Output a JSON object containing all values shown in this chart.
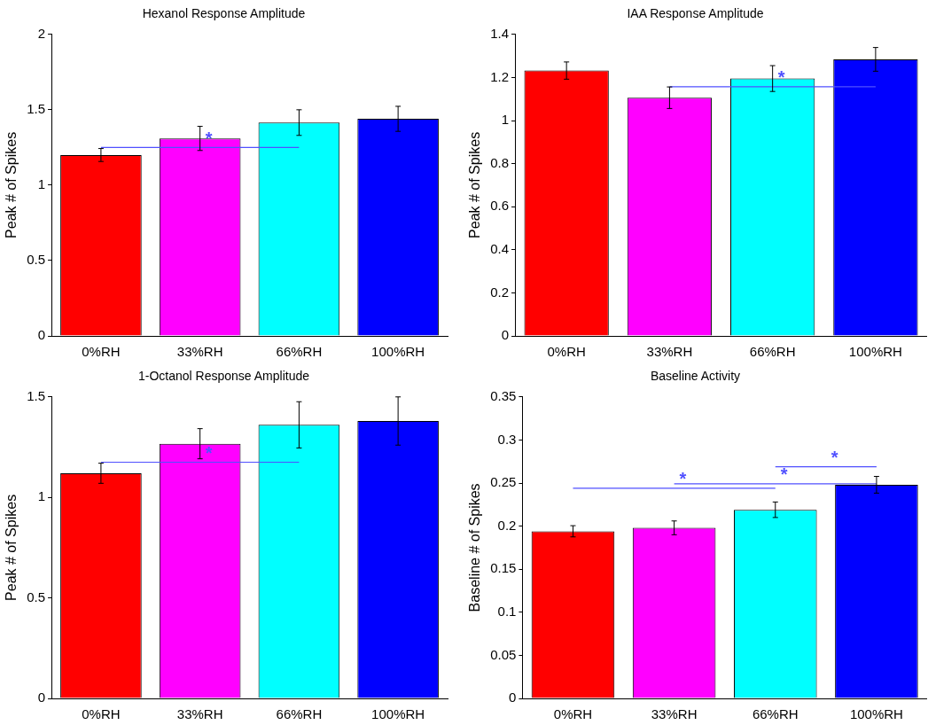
{
  "chart_data": [
    {
      "type": "bar",
      "title": "Hexanol Response Amplitude",
      "ylabel": "Peak # of Spikes",
      "categories": [
        "0%RH",
        "33%RH",
        "66%RH",
        "100%RH"
      ],
      "ylim": [
        0,
        2
      ],
      "yticks": [
        0,
        0.5,
        1,
        1.5,
        2
      ],
      "annotations": [
        "*"
      ],
      "series": [
        {
          "values": [
            1.2,
            1.31,
            1.415,
            1.44
          ],
          "colors": [
            "#ff0000",
            "#ff00ff",
            "#00ffff",
            "#0000ff"
          ],
          "errors": [
            0.043,
            0.08,
            0.085,
            0.083
          ]
        },
        {
          "type": "line",
          "x": [
            "0%RH",
            "66%RH"
          ],
          "values": [
            1.25,
            1.25
          ],
          "color": "#5050ff"
        }
      ]
    },
    {
      "type": "bar",
      "title": "IAA Response Amplitude",
      "ylabel": "Peak # of Spikes",
      "categories": [
        "0%RH",
        "33%RH",
        "66%RH",
        "100%RH"
      ],
      "ylim": [
        0,
        1.4
      ],
      "yticks": [
        0,
        0.2,
        0.4,
        0.6,
        0.8,
        1,
        1.2,
        1.4
      ],
      "annotations": [
        "*"
      ],
      "series": [
        {
          "values": [
            1.232,
            1.106,
            1.195,
            1.284
          ],
          "colors": [
            "#ff0000",
            "#ff00ff",
            "#00ffff",
            "#0000ff"
          ],
          "errors": [
            0.04,
            0.05,
            0.06,
            0.055
          ]
        },
        {
          "type": "line",
          "x": [
            "33%RH",
            "100%RH"
          ],
          "values": [
            1.157,
            1.157
          ],
          "color": "#5050ff"
        }
      ]
    },
    {
      "type": "bar",
      "title": "1-Octanol Response Amplitude",
      "ylabel": "Peak # of Spikes",
      "categories": [
        "0%RH",
        "33%RH",
        "66%RH",
        "100%RH"
      ],
      "ylim": [
        0,
        1.5
      ],
      "yticks": [
        0,
        0.5,
        1,
        1.5
      ],
      "annotations": [
        "*"
      ],
      "series": [
        {
          "values": [
            1.12,
            1.267,
            1.361,
            1.38
          ],
          "colors": [
            "#ff0000",
            "#ff00ff",
            "#00ffff",
            "#0000ff"
          ],
          "errors": [
            0.05,
            0.075,
            0.115,
            0.12
          ]
        },
        {
          "type": "line",
          "x": [
            "0%RH",
            "66%RH"
          ],
          "values": [
            1.175,
            1.175
          ],
          "color": "#5050ff"
        }
      ]
    },
    {
      "type": "bar",
      "title": "Baseline Activity",
      "ylabel": "Baseline # of Spikes",
      "categories": [
        "0%RH",
        "33%RH",
        "66%RH",
        "100%RH"
      ],
      "ylim": [
        0,
        0.35
      ],
      "yticks": [
        0,
        0.05,
        0.1,
        0.15,
        0.2,
        0.25,
        0.3,
        0.35
      ],
      "annotations": [
        "*",
        "*",
        "*"
      ],
      "series": [
        {
          "values": [
            0.194,
            0.198,
            0.219,
            0.248
          ],
          "colors": [
            "#ff0000",
            "#ff00ff",
            "#00ffff",
            "#0000ff"
          ],
          "errors": [
            0.0065,
            0.008,
            0.009,
            0.0097
          ]
        },
        {
          "type": "line",
          "x": [
            "0%RH",
            "66%RH"
          ],
          "values": [
            0.244,
            0.244
          ],
          "color": "#5050ff"
        },
        {
          "type": "line",
          "x": [
            "33%RH",
            "100%RH"
          ],
          "values": [
            0.249,
            0.249
          ],
          "color": "#5050ff"
        },
        {
          "type": "line",
          "x": [
            "66%RH",
            "100%RH"
          ],
          "values": [
            0.269,
            0.269
          ],
          "color": "#5050ff"
        }
      ]
    }
  ]
}
